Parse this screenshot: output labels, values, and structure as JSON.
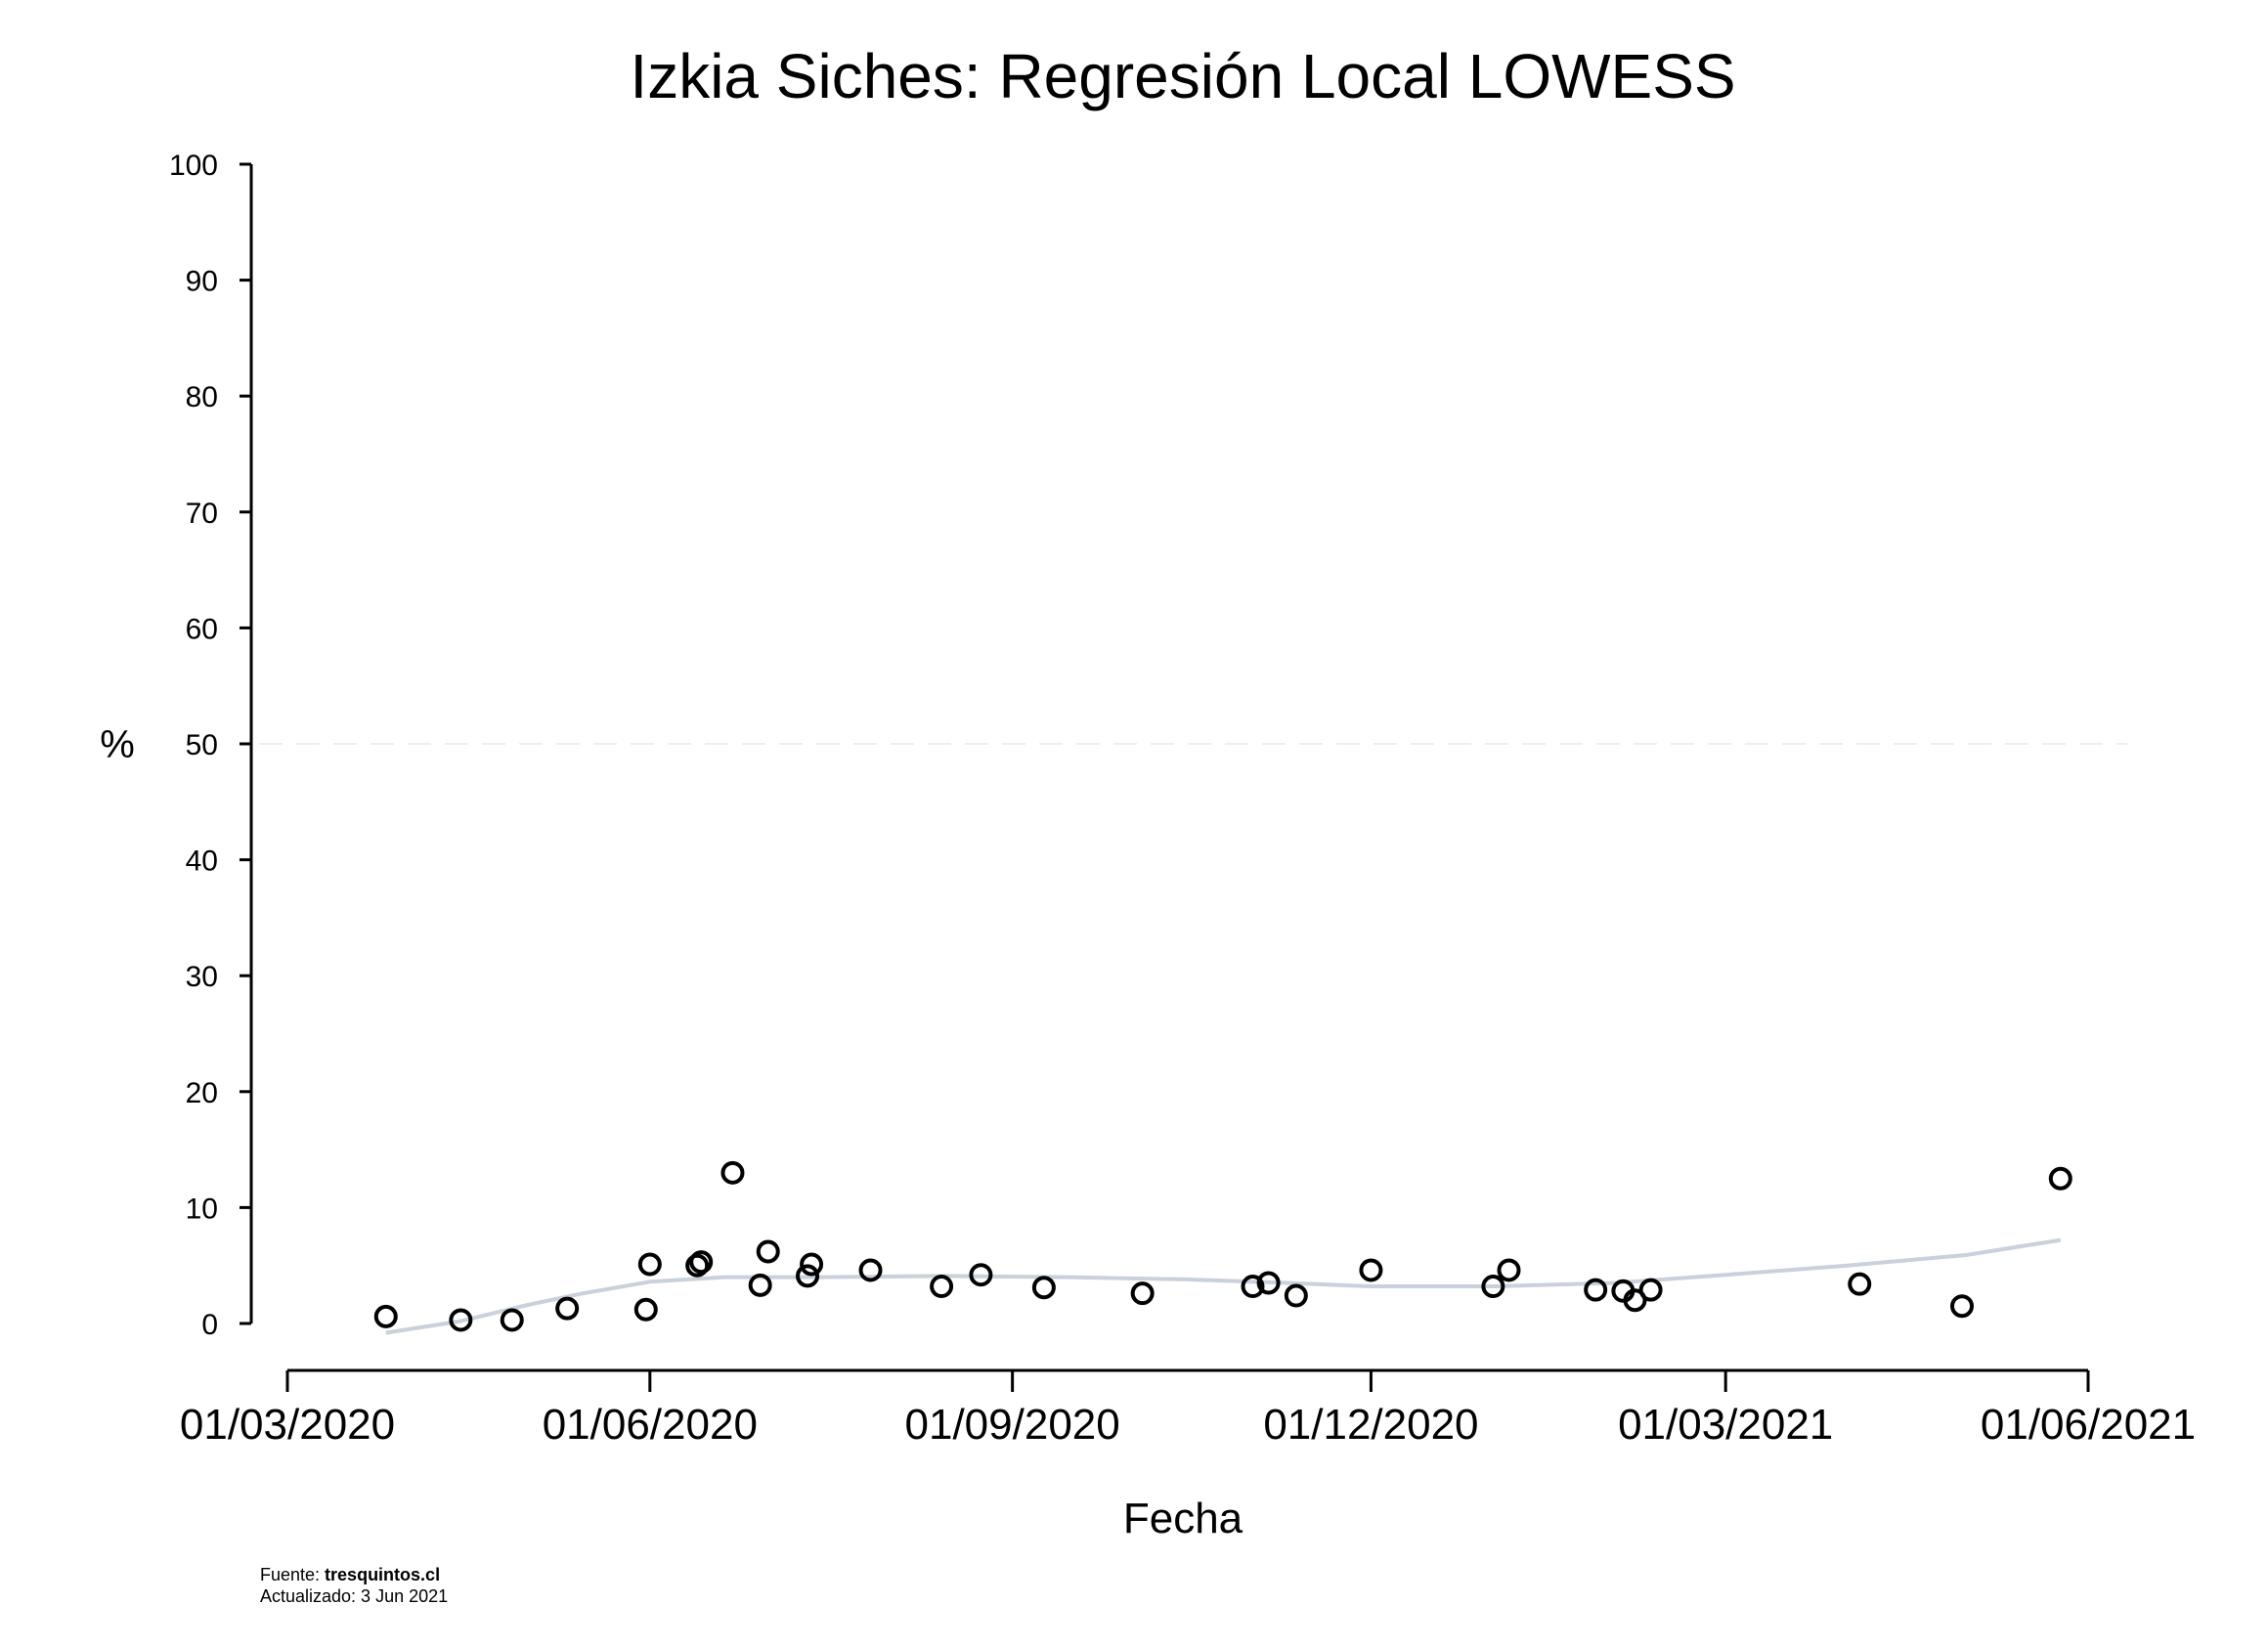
{
  "chart_data": {
    "type": "scatter",
    "title": "Izkia Siches: Regresión Local LOWESS",
    "xlabel": "Fecha",
    "ylabel": "%",
    "ylim": [
      0,
      100
    ],
    "yticks": [
      0,
      10,
      20,
      30,
      40,
      50,
      60,
      70,
      80,
      90,
      100
    ],
    "xlim": [
      "2020-03-01",
      "2021-06-01"
    ],
    "xticks": [
      "2020-03-01",
      "2020-06-01",
      "2020-09-01",
      "2020-12-01",
      "2021-03-01",
      "2021-06-01"
    ],
    "xtick_labels": [
      "01/03/2020",
      "01/06/2020",
      "01/09/2020",
      "01/12/2020",
      "01/03/2021",
      "01/06/2021"
    ],
    "reference_line": {
      "y": 50,
      "style": "dashed",
      "color": "#eeeeee"
    },
    "grid": false,
    "colors": {
      "points": "#000000",
      "lowess": "#c9d1dc"
    },
    "series": [
      {
        "type": "scatter",
        "points": [
          {
            "x": "2020-03-26",
            "y": 0.6
          },
          {
            "x": "2020-04-14",
            "y": 0.3
          },
          {
            "x": "2020-04-27",
            "y": 0.3
          },
          {
            "x": "2020-05-11",
            "y": 1.3
          },
          {
            "x": "2020-05-31",
            "y": 1.2
          },
          {
            "x": "2020-06-01",
            "y": 5.1
          },
          {
            "x": "2020-06-13",
            "y": 5.0
          },
          {
            "x": "2020-06-14",
            "y": 5.3
          },
          {
            "x": "2020-06-22",
            "y": 13.0
          },
          {
            "x": "2020-06-29",
            "y": 3.3
          },
          {
            "x": "2020-07-01",
            "y": 6.2
          },
          {
            "x": "2020-07-11",
            "y": 4.1
          },
          {
            "x": "2020-07-12",
            "y": 5.1
          },
          {
            "x": "2020-07-27",
            "y": 4.6
          },
          {
            "x": "2020-08-14",
            "y": 3.2
          },
          {
            "x": "2020-08-24",
            "y": 4.2
          },
          {
            "x": "2020-09-09",
            "y": 3.1
          },
          {
            "x": "2020-10-04",
            "y": 2.6
          },
          {
            "x": "2020-11-01",
            "y": 3.2
          },
          {
            "x": "2020-11-05",
            "y": 3.5
          },
          {
            "x": "2020-11-12",
            "y": 2.4
          },
          {
            "x": "2020-12-01",
            "y": 4.6
          },
          {
            "x": "2021-01-01",
            "y": 3.2
          },
          {
            "x": "2021-01-05",
            "y": 4.6
          },
          {
            "x": "2021-01-27",
            "y": 2.9
          },
          {
            "x": "2021-02-03",
            "y": 2.8
          },
          {
            "x": "2021-02-06",
            "y": 2.0
          },
          {
            "x": "2021-02-10",
            "y": 2.9
          },
          {
            "x": "2021-04-04",
            "y": 3.4
          },
          {
            "x": "2021-04-30",
            "y": 1.5
          },
          {
            "x": "2021-05-25",
            "y": 12.5
          }
        ]
      },
      {
        "type": "line",
        "points": [
          {
            "x": "2020-03-26",
            "y": -0.8
          },
          {
            "x": "2020-04-14",
            "y": 0.2
          },
          {
            "x": "2020-05-01",
            "y": 1.6
          },
          {
            "x": "2020-05-15",
            "y": 2.6
          },
          {
            "x": "2020-06-01",
            "y": 3.6
          },
          {
            "x": "2020-06-20",
            "y": 4.0
          },
          {
            "x": "2020-07-15",
            "y": 4.0
          },
          {
            "x": "2020-08-15",
            "y": 4.1
          },
          {
            "x": "2020-09-15",
            "y": 4.0
          },
          {
            "x": "2020-10-15",
            "y": 3.8
          },
          {
            "x": "2020-11-10",
            "y": 3.5
          },
          {
            "x": "2020-12-01",
            "y": 3.2
          },
          {
            "x": "2021-01-01",
            "y": 3.2
          },
          {
            "x": "2021-02-01",
            "y": 3.5
          },
          {
            "x": "2021-03-01",
            "y": 4.2
          },
          {
            "x": "2021-04-01",
            "y": 5.0
          },
          {
            "x": "2021-05-01",
            "y": 5.9
          },
          {
            "x": "2021-05-25",
            "y": 7.2
          }
        ]
      }
    ]
  },
  "footer": {
    "source_label": "Fuente: ",
    "source_name": "tresquintos.cl",
    "updated": "Actualizado: 3 Jun 2021"
  }
}
